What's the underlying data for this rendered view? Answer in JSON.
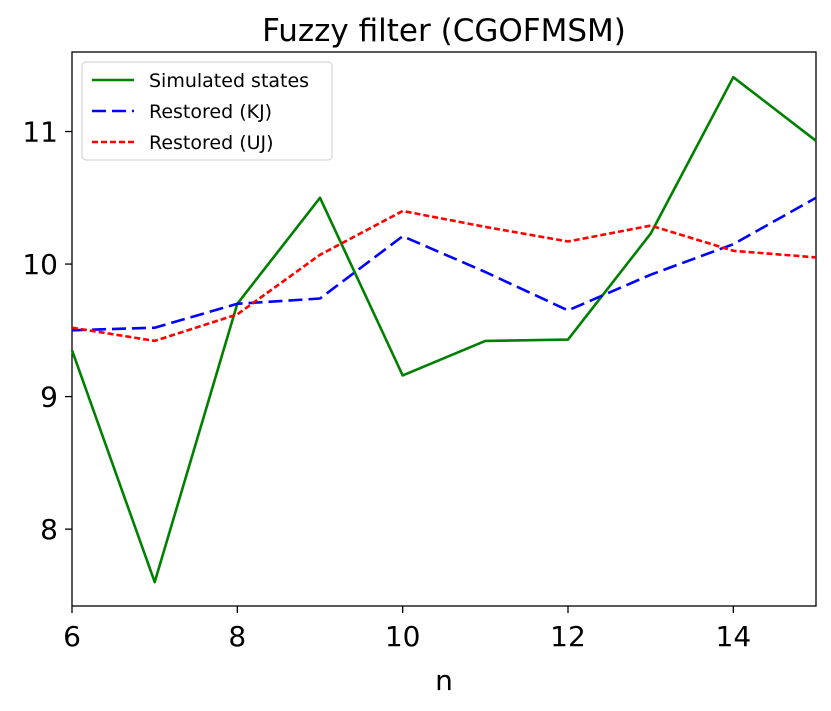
{
  "chart_data": {
    "type": "line",
    "title": "Fuzzy filter (CGOFMSM)",
    "xlabel": "n",
    "ylabel": "",
    "xlim": [
      6,
      15
    ],
    "ylim": [
      7.42,
      11.6
    ],
    "xticks": [
      6,
      8,
      10,
      12,
      14
    ],
    "yticks": [
      8,
      9,
      10,
      11
    ],
    "grid": false,
    "legend_position": "top-left",
    "series": [
      {
        "name": "Simulated states",
        "color": "#008000",
        "style": "solid",
        "x": [
          6,
          7,
          8,
          9,
          10,
          11,
          12,
          13,
          14,
          15
        ],
        "y": [
          9.35,
          7.6,
          9.7,
          10.5,
          9.16,
          9.42,
          9.43,
          10.23,
          11.41,
          10.93
        ]
      },
      {
        "name": "Restored (KJ)",
        "color": "#0000ff",
        "style": "dashed",
        "x": [
          6,
          7,
          8,
          9,
          10,
          11,
          12,
          13,
          14,
          15
        ],
        "y": [
          9.5,
          9.52,
          9.7,
          9.74,
          10.21,
          9.94,
          9.65,
          9.92,
          10.15,
          10.5
        ]
      },
      {
        "name": "Restored (UJ)",
        "color": "#ff0000",
        "style": "dotted",
        "x": [
          6,
          7,
          8,
          9,
          10,
          11,
          12,
          13,
          14,
          15
        ],
        "y": [
          9.52,
          9.42,
          9.62,
          10.07,
          10.4,
          10.28,
          10.17,
          10.29,
          10.1,
          10.05
        ]
      }
    ]
  }
}
